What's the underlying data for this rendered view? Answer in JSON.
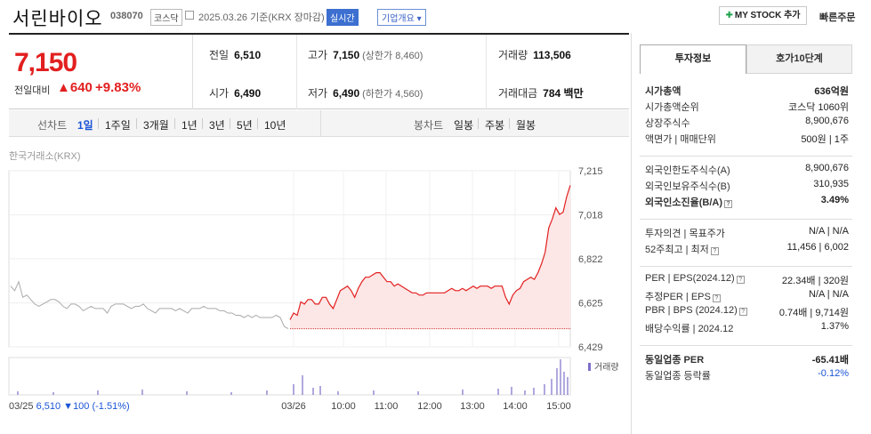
{
  "header": {
    "name": "서린바이오",
    "code": "038070",
    "market": "코스닥",
    "date": "2025.03.26 기준(KRX 장마감)",
    "realtime": "실시간",
    "overview": "기업개요 ▾",
    "mystock": "MY STOCK 추가",
    "quick_order": "빠른주문"
  },
  "price": {
    "current": "7,150",
    "compare_label": "전일대비",
    "change": "▲640",
    "rate": "+9.83%",
    "prev_label": "전일",
    "prev": "6,510",
    "open_label": "시가",
    "open": "6,490",
    "high_label": "고가",
    "high": "7,150",
    "upper_limit": "(상한가 8,460)",
    "low_label": "저가",
    "low": "6,490",
    "lower_limit": "(하한가 4,560)",
    "volume_label": "거래량",
    "volume": "113,506",
    "amount_label": "거래대금",
    "amount": "784 백만"
  },
  "period_bar": {
    "line_chart_label": "선차트",
    "periods": [
      "1일",
      "1주일",
      "3개월",
      "1년",
      "3년",
      "5년",
      "10년"
    ],
    "selected": "1일",
    "candle_label": "봉차트",
    "candles": [
      "일봉",
      "주봉",
      "월봉"
    ]
  },
  "chart_source": "한국거래소(KRX)",
  "chart_data": {
    "type": "line",
    "y_ticks": [
      "7,215",
      "7,018",
      "6,822",
      "6,625",
      "6,429"
    ],
    "ylim": [
      6429,
      7215
    ],
    "prev_close": 6510,
    "volume_label": "거래량",
    "x_labels": [
      "03/26",
      "10:00",
      "11:00",
      "12:00",
      "13:00",
      "14:00",
      "15:00"
    ],
    "prev_day_summary": {
      "date": "03/25",
      "close": "6,510",
      "change": "▼100",
      "rate": "(-1.51%)"
    },
    "today_series": [
      6550,
      6580,
      6570,
      6630,
      6620,
      6640,
      6640,
      6620,
      6620,
      6650,
      6650,
      6620,
      6600,
      6640,
      6680,
      6690,
      6700,
      6680,
      6650,
      6690,
      6720,
      6740,
      6740,
      6750,
      6760,
      6760,
      6740,
      6720,
      6720,
      6700,
      6710,
      6700,
      6690,
      6680,
      6670,
      6670,
      6660,
      6660,
      6670,
      6670,
      6670,
      6670,
      6670,
      6670,
      6680,
      6690,
      6680,
      6680,
      6690,
      6680,
      6690,
      6700,
      6690,
      6700,
      6700,
      6700,
      6690,
      6700,
      6700,
      6700,
      6650,
      6620,
      6660,
      6680,
      6690,
      6720,
      6730,
      6740,
      6730,
      6760,
      6800,
      6850,
      6960,
      7000,
      7050,
      7020,
      7030,
      7100,
      7150
    ],
    "prev_series": [
      6700,
      6680,
      6720,
      6650,
      6660,
      6640,
      6620,
      6610,
      6620,
      6630,
      6640,
      6640,
      6630,
      6610,
      6600,
      6620,
      6620,
      6610,
      6590,
      6600,
      6610,
      6600,
      6600,
      6600,
      6580,
      6610,
      6620,
      6620,
      6620,
      6610,
      6600,
      6610,
      6610,
      6620,
      6600,
      6590,
      6580,
      6600,
      6600,
      6600,
      6600,
      6590,
      6600,
      6590,
      6580,
      6600,
      6600,
      6600,
      6610,
      6600,
      6600,
      6600,
      6590,
      6590,
      6580,
      6580,
      6570,
      6570,
      6560,
      6570,
      6560,
      6570,
      6560,
      6560,
      6560,
      6560,
      6570,
      6560,
      6520,
      6510
    ]
  },
  "right_panel": {
    "tabs": [
      "투자정보",
      "호가10단계"
    ],
    "rows1": [
      {
        "k": "시가총액",
        "v": "636억원",
        "bold": true
      },
      {
        "k": "시가총액순위",
        "v": "코스닥 1060위"
      },
      {
        "k": "상장주식수",
        "v": "8,900,676"
      },
      {
        "k": "액면가 | 매매단위",
        "v": "500원 | 1주"
      }
    ],
    "rows2": [
      {
        "k": "외국인한도주식수(A)",
        "v": "8,900,676"
      },
      {
        "k": "외국인보유주식수(B)",
        "v": "310,935"
      },
      {
        "k": "외국인소진율(B/A)",
        "v": "3.49%",
        "bold": true
      }
    ],
    "rows3": [
      {
        "k": "투자의견 | 목표주가",
        "v": "N/A | N/A"
      },
      {
        "k": "52주최고 | 최저",
        "v": "11,456 | 6,002"
      }
    ],
    "rows4": [
      {
        "k": "PER | EPS(2024.12)",
        "v": "22.34배 | 320원"
      },
      {
        "k": "추정PER | EPS",
        "v": "N/A | N/A"
      },
      {
        "k": "PBR | BPS (2024.12)",
        "v": "0.74배 | 9,714원"
      },
      {
        "k": "배당수익률 | 2024.12",
        "v": "1.37%"
      }
    ],
    "rows5": [
      {
        "k": "동일업종 PER",
        "v": "-65.41배",
        "bold": true
      },
      {
        "k": "동일업종 등락률",
        "v": "-0.12%"
      }
    ]
  }
}
